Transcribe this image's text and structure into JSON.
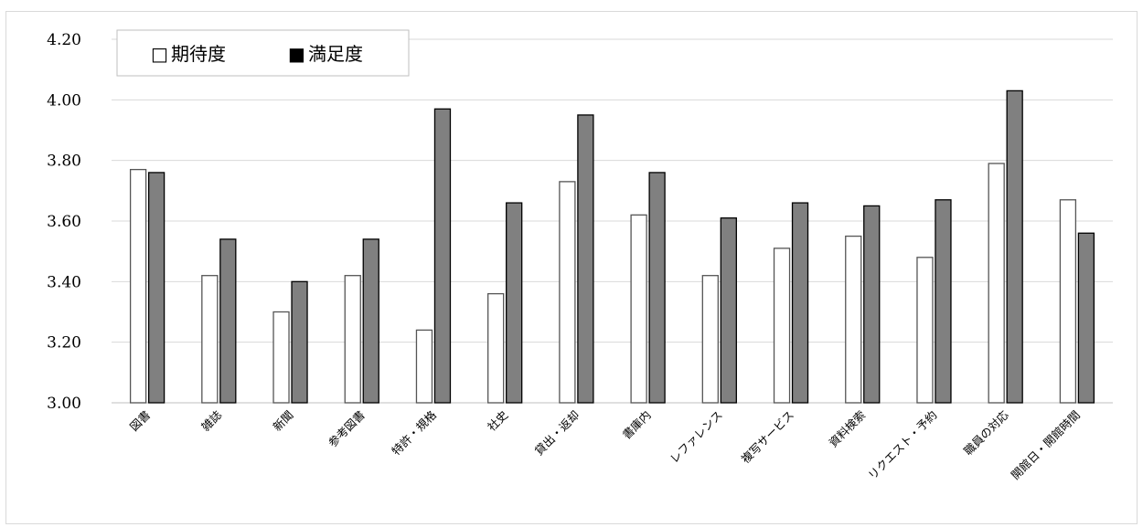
{
  "chart_data": {
    "type": "bar",
    "categories": [
      "図書",
      "雑誌",
      "新聞",
      "参考図書",
      "特許・規格",
      "社史",
      "貸出・返却",
      "書庫内",
      "レファレンス",
      "複写サービス",
      "資料検索",
      "リクエスト・予約",
      "職員の対応",
      "開館日・開館時間"
    ],
    "series": [
      {
        "name": "期待度",
        "values": [
          3.77,
          3.42,
          3.3,
          3.42,
          3.24,
          3.36,
          3.73,
          3.62,
          3.42,
          3.51,
          3.55,
          3.48,
          3.79,
          3.67
        ],
        "fill": "#ffffff",
        "stroke": "#555555"
      },
      {
        "name": "満足度",
        "values": [
          3.76,
          3.54,
          3.4,
          3.54,
          3.97,
          3.66,
          3.95,
          3.76,
          3.61,
          3.66,
          3.65,
          3.67,
          4.03,
          3.56
        ],
        "fill": "#808080",
        "stroke": "#000000"
      }
    ],
    "ylim": [
      3.0,
      4.2
    ],
    "yticks": [
      "3.00",
      "3.20",
      "3.40",
      "3.60",
      "3.80",
      "4.00",
      "4.20"
    ],
    "grid": true,
    "legend_position": "top-left",
    "legend_symbols": [
      "□",
      "■"
    ]
  },
  "colors": {
    "gridline": "#d9d9d9",
    "axis": "#bfbfbf"
  }
}
